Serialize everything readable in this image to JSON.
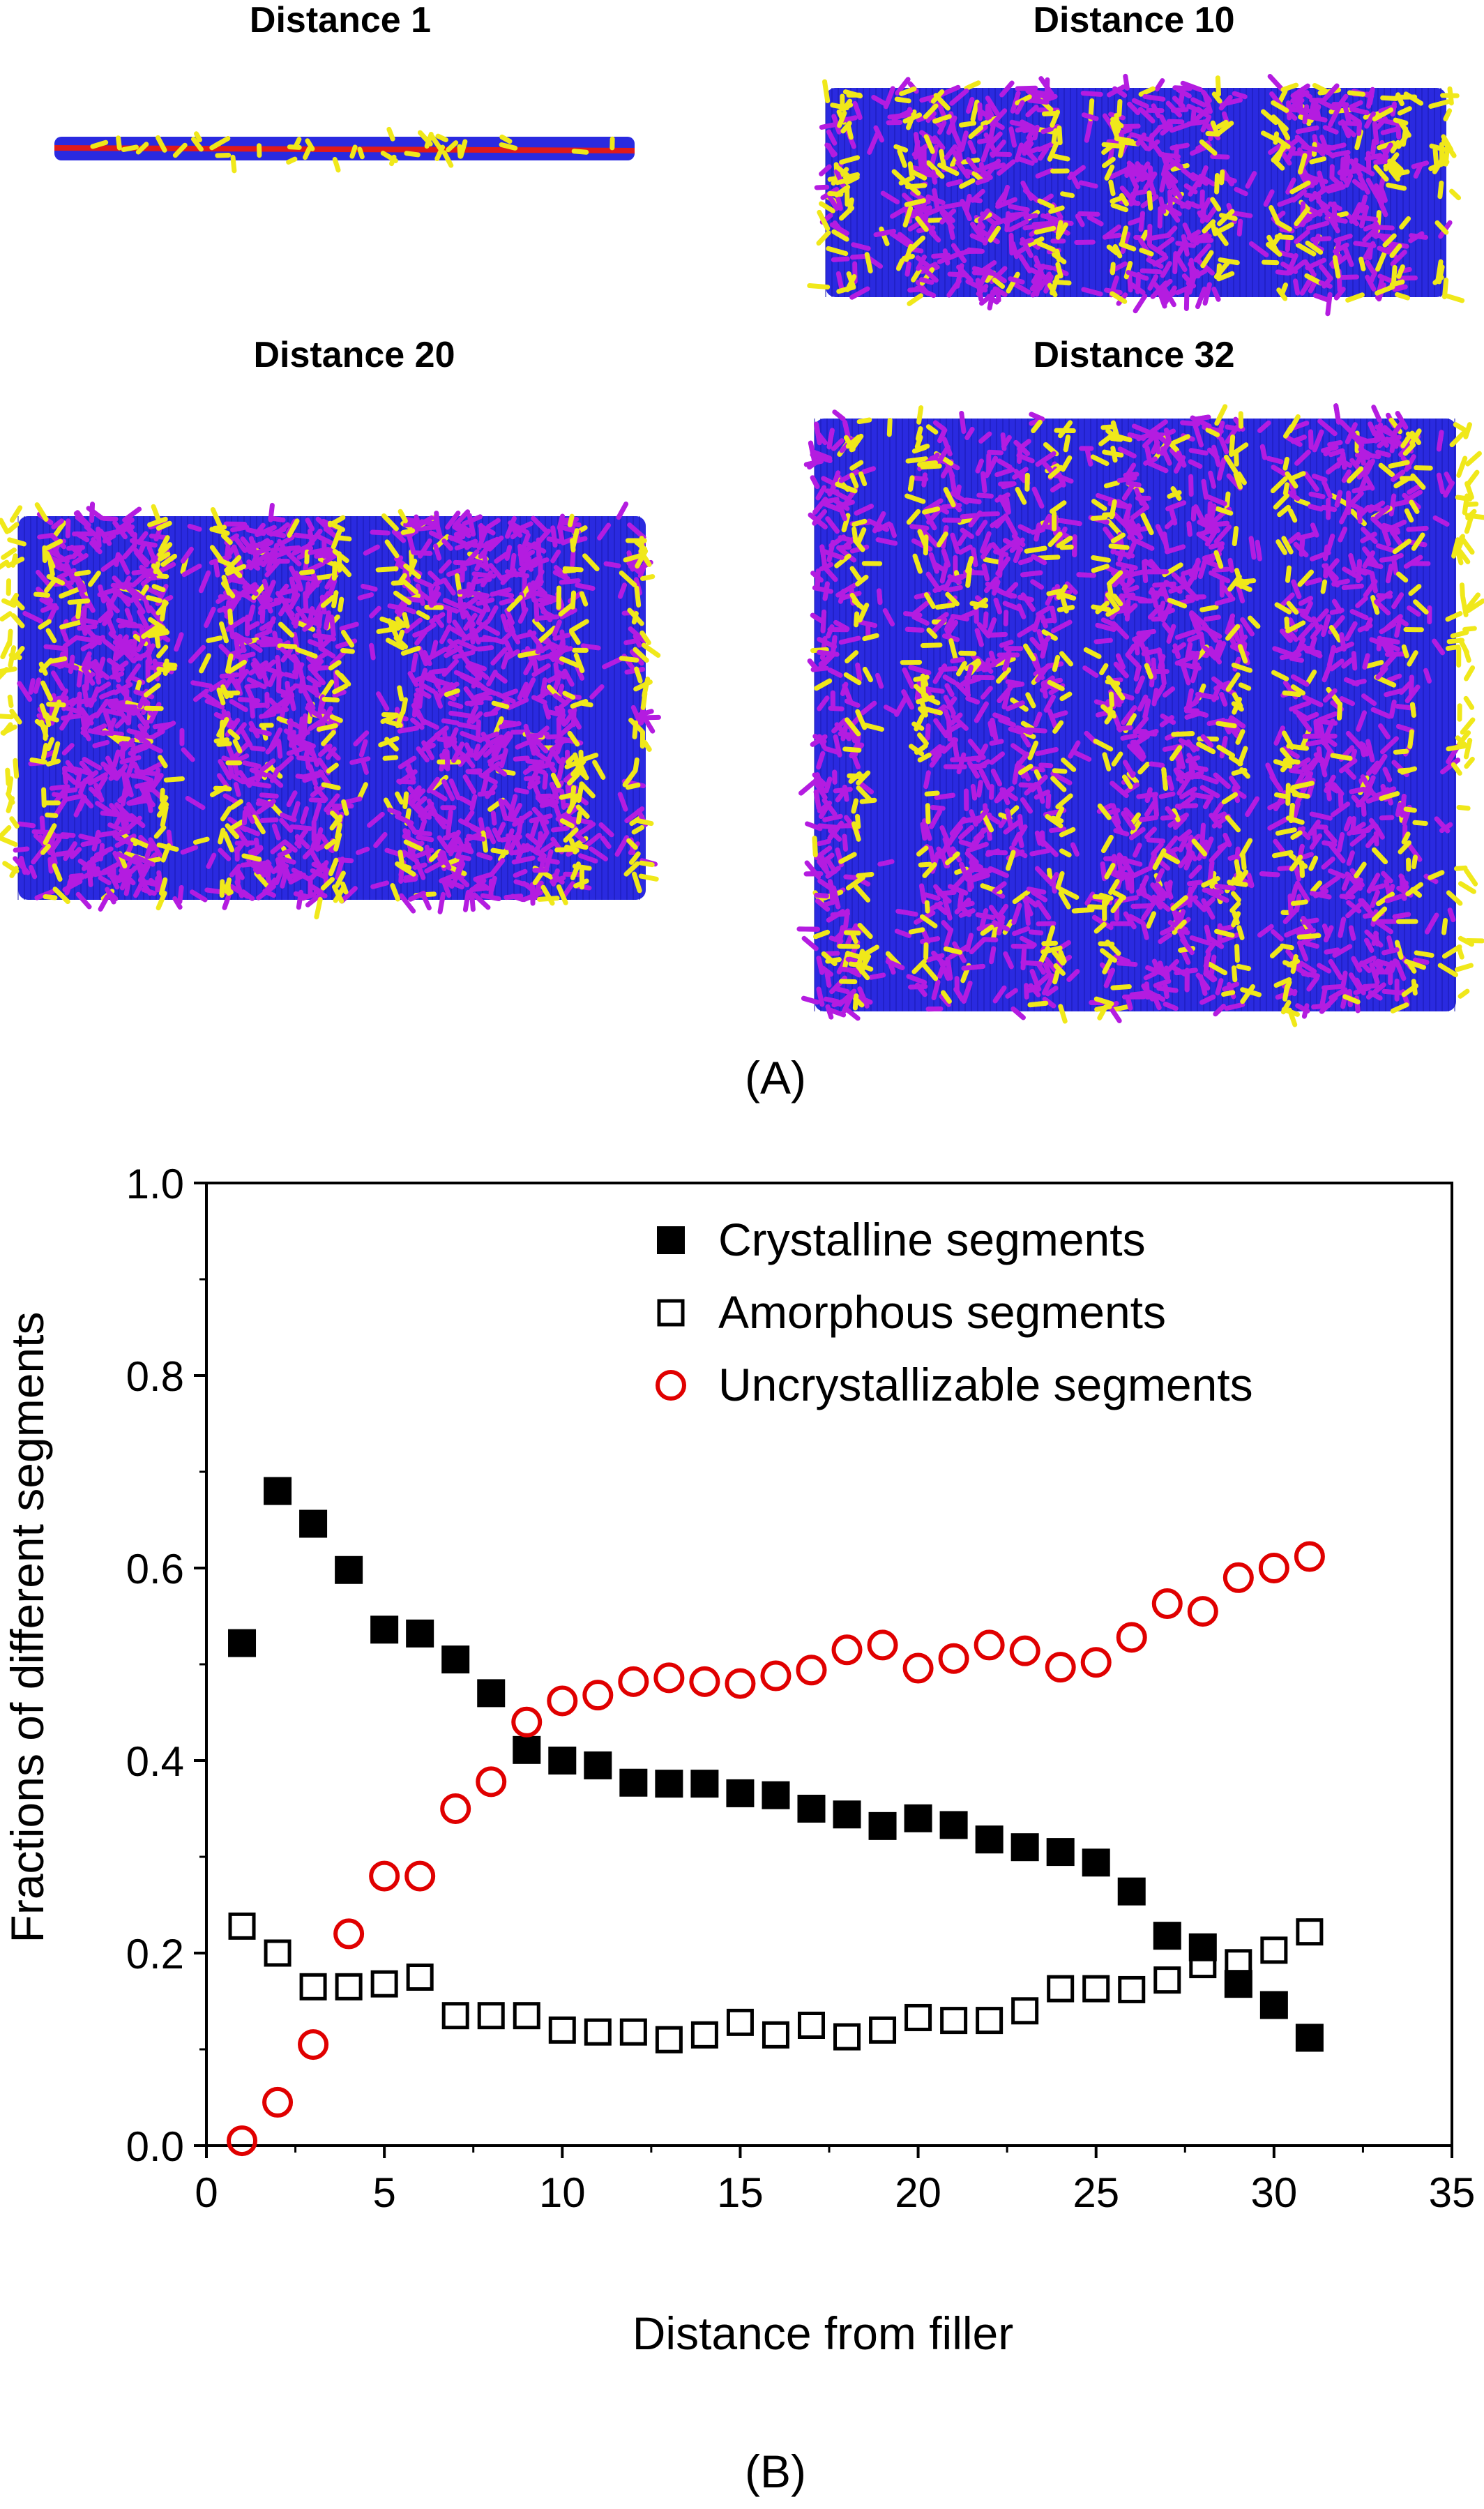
{
  "panel_a": {
    "label": "(A)",
    "colors": {
      "crystalline": "#2a2ae0",
      "amorphous": "#b41ce0",
      "uncrystallizable": "#f0e81a",
      "filler": "#e01a1a"
    },
    "snapshots": [
      {
        "title": "Distance 1"
      },
      {
        "title": "Distance 10"
      },
      {
        "title": "Distance 20"
      },
      {
        "title": "Distance 32"
      }
    ]
  },
  "panel_b": {
    "label": "(B)"
  },
  "chart_data": {
    "type": "scatter",
    "xlabel": "Distance from filler",
    "ylabel": "Fractions of different segments",
    "xlim": [
      0,
      35
    ],
    "ylim": [
      0.0,
      1.0
    ],
    "xticks": [
      "0",
      "5",
      "10",
      "15",
      "20",
      "25",
      "30",
      "35"
    ],
    "yticks": [
      "0.0",
      "0.2",
      "0.4",
      "0.6",
      "0.8",
      "1.0"
    ],
    "grid": false,
    "legend_position": "top-right",
    "x": [
      1,
      2,
      3,
      4,
      5,
      6,
      7,
      8,
      9,
      10,
      11,
      12,
      13,
      14,
      15,
      16,
      17,
      18,
      19,
      20,
      21,
      22,
      23,
      24,
      25,
      26,
      27,
      28,
      29,
      30,
      31
    ],
    "series": [
      {
        "name": "Crystalline segments",
        "marker": "filled-square",
        "color": "#000000",
        "values": [
          0.522,
          0.68,
          0.646,
          0.598,
          0.536,
          0.532,
          0.505,
          0.47,
          0.411,
          0.4,
          0.395,
          0.377,
          0.376,
          0.376,
          0.366,
          0.364,
          0.35,
          0.344,
          0.332,
          0.34,
          0.333,
          0.318,
          0.31,
          0.305,
          0.294,
          0.264,
          0.218,
          0.206,
          0.168,
          0.146,
          0.112
        ]
      },
      {
        "name": "Amorphous segments",
        "marker": "open-square",
        "color": "#000000",
        "values": [
          0.228,
          0.2,
          0.165,
          0.165,
          0.168,
          0.175,
          0.135,
          0.135,
          0.135,
          0.12,
          0.118,
          0.118,
          0.11,
          0.115,
          0.128,
          0.115,
          0.125,
          0.113,
          0.12,
          0.133,
          0.13,
          0.13,
          0.14,
          0.163,
          0.163,
          0.162,
          0.172,
          0.188,
          0.19,
          0.203,
          0.222
        ]
      },
      {
        "name": "Uncrystallizable segments",
        "marker": "open-circle",
        "color": "#e00000",
        "values": [
          0.005,
          0.045,
          0.105,
          0.22,
          0.28,
          0.28,
          0.35,
          0.378,
          0.44,
          0.462,
          0.468,
          0.482,
          0.486,
          0.482,
          0.48,
          0.488,
          0.494,
          0.515,
          0.52,
          0.496,
          0.506,
          0.52,
          0.514,
          0.497,
          0.502,
          0.528,
          0.563,
          0.555,
          0.59,
          0.6,
          0.612
        ]
      }
    ]
  }
}
